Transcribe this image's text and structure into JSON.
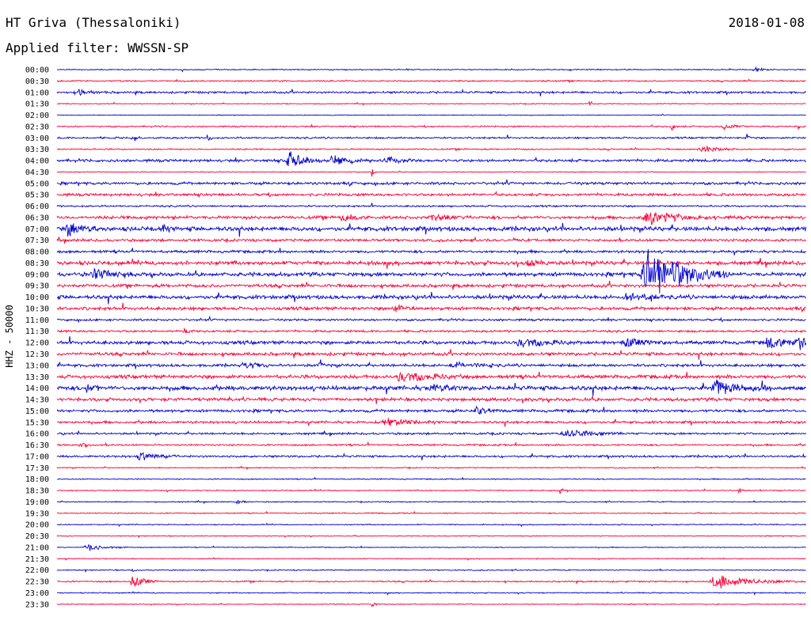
{
  "header": {
    "station": "HT Griva (Thessaloniki)",
    "date": "2018-01-08",
    "filter": "Applied filter: WWSSN-SP"
  },
  "axis": {
    "ylabel": "HHZ - 50000"
  },
  "chart_data": {
    "type": "helicorder",
    "colors": [
      "#0000cc",
      "#ff0033"
    ],
    "rows": [
      "00:00",
      "00:30",
      "01:00",
      "01:30",
      "02:00",
      "02:30",
      "03:00",
      "03:30",
      "04:00",
      "04:30",
      "05:00",
      "05:30",
      "06:00",
      "06:30",
      "07:00",
      "07:30",
      "08:00",
      "08:30",
      "09:00",
      "09:30",
      "10:00",
      "10:30",
      "11:00",
      "11:30",
      "12:00",
      "12:30",
      "13:00",
      "13:30",
      "14:00",
      "14:30",
      "15:00",
      "15:30",
      "16:00",
      "16:30",
      "17:00",
      "17:30",
      "18:00",
      "18:30",
      "19:00",
      "19:30",
      "20:00",
      "20:30",
      "21:00",
      "21:30",
      "22:00",
      "22:30",
      "23:00",
      "23:30"
    ],
    "noise": [
      0.6,
      0.8,
      1.2,
      0.5,
      0.4,
      0.8,
      1.0,
      0.8,
      1.5,
      0.5,
      1.5,
      1.5,
      1.0,
      1.8,
      2.5,
      1.5,
      1.5,
      2.2,
      2.2,
      1.8,
      2.2,
      1.8,
      1.2,
      1.2,
      2.0,
      1.8,
      1.6,
      2.0,
      2.5,
      1.8,
      1.6,
      1.4,
      1.2,
      1.0,
      1.2,
      0.6,
      0.6,
      0.6,
      0.6,
      0.6,
      0.6,
      0.5,
      0.5,
      0.5,
      0.6,
      0.8,
      0.6,
      0.5
    ],
    "events": [
      {
        "row": 0,
        "t": 0.93,
        "amp": 4,
        "dur": 0.015
      },
      {
        "row": 2,
        "t": 0.03,
        "amp": 4,
        "dur": 0.02
      },
      {
        "row": 3,
        "t": 0.3,
        "amp": 3,
        "dur": 0.005
      },
      {
        "row": 3,
        "t": 0.71,
        "amp": 8,
        "dur": 0.003
      },
      {
        "row": 5,
        "t": 0.82,
        "amp": 6,
        "dur": 0.005
      },
      {
        "row": 5,
        "t": 0.89,
        "amp": 7,
        "dur": 0.015
      },
      {
        "row": 5,
        "t": 0.99,
        "amp": 6,
        "dur": 0.005
      },
      {
        "row": 6,
        "t": 0.1,
        "amp": 4,
        "dur": 0.01
      },
      {
        "row": 6,
        "t": 0.2,
        "amp": 8,
        "dur": 0.005
      },
      {
        "row": 6,
        "t": 0.92,
        "amp": 8,
        "dur": 0.005
      },
      {
        "row": 7,
        "t": 0.86,
        "amp": 5,
        "dur": 0.03
      },
      {
        "row": 8,
        "t": 0.31,
        "amp": 14,
        "dur": 0.025
      },
      {
        "row": 8,
        "t": 0.37,
        "amp": 6,
        "dur": 0.03
      },
      {
        "row": 8,
        "t": 0.44,
        "amp": 6,
        "dur": 0.025
      },
      {
        "row": 9,
        "t": 0.42,
        "amp": 9,
        "dur": 0.003
      },
      {
        "row": 13,
        "t": 0.38,
        "amp": 5,
        "dur": 0.02
      },
      {
        "row": 13,
        "t": 0.5,
        "amp": 5,
        "dur": 0.03
      },
      {
        "row": 13,
        "t": 0.79,
        "amp": 9,
        "dur": 0.05
      },
      {
        "row": 14,
        "t": 0.015,
        "amp": 10,
        "dur": 0.02
      },
      {
        "row": 14,
        "t": 0.14,
        "amp": 5,
        "dur": 0.01
      },
      {
        "row": 17,
        "t": 0.63,
        "amp": 5,
        "dur": 0.02
      },
      {
        "row": 18,
        "t": 0.05,
        "amp": 7,
        "dur": 0.03
      },
      {
        "row": 18,
        "t": 0.79,
        "amp": 40,
        "dur": 0.06
      },
      {
        "row": 20,
        "t": 0.76,
        "amp": 6,
        "dur": 0.03
      },
      {
        "row": 21,
        "t": 0.45,
        "amp": 7,
        "dur": 0.02
      },
      {
        "row": 23,
        "t": 0.17,
        "amp": 4,
        "dur": 0.01
      },
      {
        "row": 24,
        "t": 0.62,
        "amp": 6,
        "dur": 0.04
      },
      {
        "row": 24,
        "t": 0.76,
        "amp": 6,
        "dur": 0.03
      },
      {
        "row": 24,
        "t": 0.95,
        "amp": 9,
        "dur": 0.03
      },
      {
        "row": 24,
        "t": 0.99,
        "amp": 8,
        "dur": 0.02
      },
      {
        "row": 26,
        "t": 0.25,
        "amp": 6,
        "dur": 0.02
      },
      {
        "row": 26,
        "t": 0.35,
        "amp": 9,
        "dur": 0.005
      },
      {
        "row": 26,
        "t": 0.53,
        "amp": 5,
        "dur": 0.03
      },
      {
        "row": 27,
        "t": 0.46,
        "amp": 7,
        "dur": 0.05
      },
      {
        "row": 28,
        "t": 0.04,
        "amp": 5,
        "dur": 0.01
      },
      {
        "row": 28,
        "t": 0.5,
        "amp": 5,
        "dur": 0.02
      },
      {
        "row": 28,
        "t": 0.88,
        "amp": 10,
        "dur": 0.04
      },
      {
        "row": 30,
        "t": 0.56,
        "amp": 6,
        "dur": 0.02
      },
      {
        "row": 31,
        "t": 0.44,
        "amp": 5,
        "dur": 0.04
      },
      {
        "row": 32,
        "t": 0.68,
        "amp": 5,
        "dur": 0.05
      },
      {
        "row": 33,
        "t": 0.03,
        "amp": 6,
        "dur": 0.01
      },
      {
        "row": 34,
        "t": 0.11,
        "amp": 6,
        "dur": 0.03
      },
      {
        "row": 37,
        "t": 0.67,
        "amp": 6,
        "dur": 0.005
      },
      {
        "row": 37,
        "t": 0.91,
        "amp": 6,
        "dur": 0.005
      },
      {
        "row": 38,
        "t": 0.24,
        "amp": 4,
        "dur": 0.01
      },
      {
        "row": 42,
        "t": 0.04,
        "amp": 5,
        "dur": 0.03
      },
      {
        "row": 44,
        "t": 0.1,
        "amp": 4,
        "dur": 0.005
      },
      {
        "row": 45,
        "t": 0.1,
        "amp": 9,
        "dur": 0.02
      },
      {
        "row": 45,
        "t": 0.88,
        "amp": 9,
        "dur": 0.06
      },
      {
        "row": 47,
        "t": 0.42,
        "amp": 6,
        "dur": 0.005
      }
    ]
  }
}
